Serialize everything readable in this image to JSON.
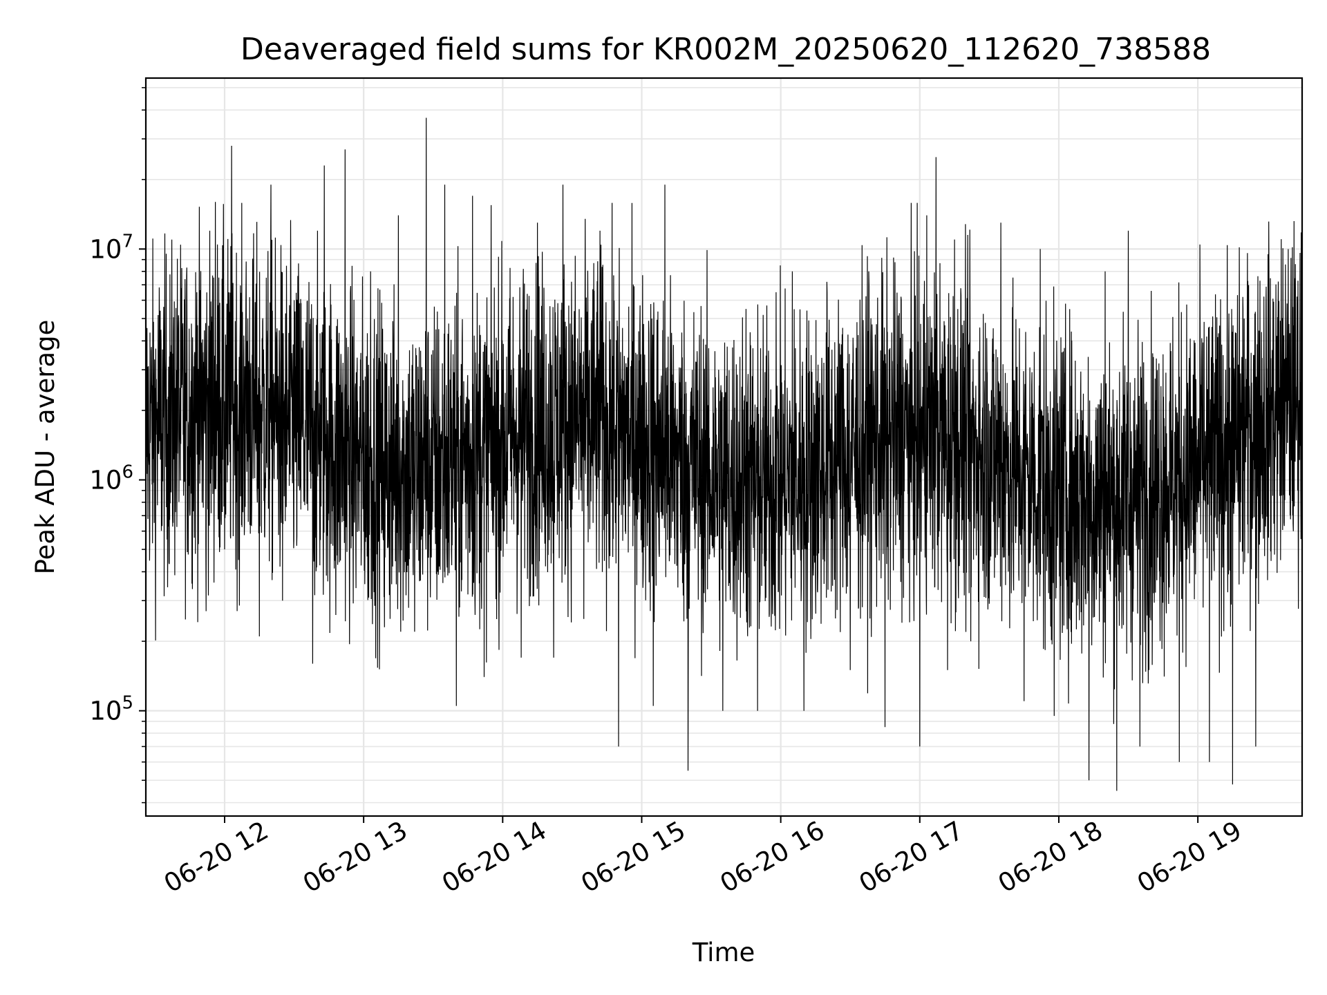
{
  "chart_data": {
    "type": "line",
    "title": "Deaveraged field sums for KR002M_20250620_112620_738588",
    "xlabel": "Time",
    "ylabel": "Peak ADU - average",
    "x_start": "2025-06-20 11:26",
    "x_end": "2025-06-20 19:45",
    "xlim": [
      "2025-06-20 11:26",
      "2025-06-20 19:45"
    ],
    "x_ticks": [
      "2025-06-20 12:00",
      "2025-06-20 13:00",
      "2025-06-20 14:00",
      "2025-06-20 15:00",
      "2025-06-20 16:00",
      "2025-06-20 17:00",
      "2025-06-20 18:00",
      "2025-06-20 19:00"
    ],
    "x_tick_labels": [
      "06-20 12",
      "06-20 13",
      "06-20 14",
      "06-20 15",
      "06-20 16",
      "06-20 17",
      "06-20 18",
      "06-20 19"
    ],
    "y_scale": "log",
    "ylim": [
      35000,
      55000000
    ],
    "y_ticks": [
      100000,
      1000000,
      10000000
    ],
    "y_tick_labels": [
      {
        "base": "10",
        "exp": "5"
      },
      {
        "base": "10",
        "exp": "6"
      },
      {
        "base": "10",
        "exp": "7"
      }
    ],
    "grid": true,
    "minor_grid": true,
    "line_color": "#000000",
    "grid_color": "#e6e6e6",
    "notable_points": [
      {
        "x": "2025-06-20 12:03",
        "y": 28000000
      },
      {
        "x": "2025-06-20 13:27",
        "y": 37000000
      },
      {
        "x": "2025-06-20 14:50",
        "y": 70000
      },
      {
        "x": "2025-06-20 15:20",
        "y": 55000
      },
      {
        "x": "2025-06-20 17:07",
        "y": 25000000
      },
      {
        "x": "2025-06-20 18:25",
        "y": 45000
      },
      {
        "x": "2025-06-20 19:15",
        "y": 48000
      }
    ],
    "series": [
      {
        "values": [
          [
            "2025-06-20 11:26",
            420000
          ],
          [
            "2025-06-20 11:30",
            2500000
          ],
          [
            "2025-06-20 11:35",
            900000
          ],
          [
            "2025-06-20 11:40",
            4500000
          ],
          [
            "2025-06-20 11:45",
            700000
          ],
          [
            "2025-06-20 11:48",
            6500000
          ],
          [
            "2025-06-20 11:52",
            270000
          ],
          [
            "2025-06-20 11:56",
            16000000
          ],
          [
            "2025-06-20 12:00",
            500000
          ],
          [
            "2025-06-20 12:03",
            28000000
          ],
          [
            "2025-06-20 12:06",
            450000
          ],
          [
            "2025-06-20 12:10",
            5000000
          ],
          [
            "2025-06-20 12:15",
            210000
          ],
          [
            "2025-06-20 12:20",
            19000000
          ],
          [
            "2025-06-20 12:25",
            300000
          ],
          [
            "2025-06-20 12:30",
            6000000
          ],
          [
            "2025-06-20 12:38",
            160000
          ],
          [
            "2025-06-20 12:43",
            23000000
          ],
          [
            "2025-06-20 12:48",
            260000
          ],
          [
            "2025-06-20 12:52",
            27000000
          ],
          [
            "2025-06-20 12:58",
            600000
          ],
          [
            "2025-06-20 13:03",
            8000000
          ],
          [
            "2025-06-20 13:09",
            230000
          ],
          [
            "2025-06-20 13:15",
            14000000
          ],
          [
            "2025-06-20 13:22",
            220000
          ],
          [
            "2025-06-20 13:27",
            37000000
          ],
          [
            "2025-06-20 13:32",
            400000
          ],
          [
            "2025-06-20 13:35",
            19000000
          ],
          [
            "2025-06-20 13:40",
            105000
          ],
          [
            "2025-06-20 13:47",
            17000000
          ],
          [
            "2025-06-20 13:52",
            140000
          ],
          [
            "2025-06-20 14:00",
            3000000
          ],
          [
            "2025-06-20 14:08",
            170000
          ],
          [
            "2025-06-20 14:15",
            13000000
          ],
          [
            "2025-06-20 14:22",
            170000
          ],
          [
            "2025-06-20 14:26",
            19000000
          ],
          [
            "2025-06-20 14:35",
            250000
          ],
          [
            "2025-06-20 14:42",
            12000000
          ],
          [
            "2025-06-20 14:50",
            70000
          ],
          [
            "2025-06-20 14:58",
            3500000
          ],
          [
            "2025-06-20 15:05",
            105000
          ],
          [
            "2025-06-20 15:10",
            19000000
          ],
          [
            "2025-06-20 15:20",
            55000
          ],
          [
            "2025-06-20 15:28",
            1500000
          ],
          [
            "2025-06-20 15:35",
            100000
          ],
          [
            "2025-06-20 15:45",
            5500000
          ],
          [
            "2025-06-20 15:50",
            100000
          ],
          [
            "2025-06-20 15:58",
            6500000
          ],
          [
            "2025-06-20 16:05",
            8000000
          ],
          [
            "2025-06-20 16:10",
            100000
          ],
          [
            "2025-06-20 16:20",
            6500000
          ],
          [
            "2025-06-20 16:30",
            150000
          ],
          [
            "2025-06-20 16:38",
            8000000
          ],
          [
            "2025-06-20 16:45",
            85000
          ],
          [
            "2025-06-20 16:52",
            6000000
          ],
          [
            "2025-06-20 17:00",
            70000
          ],
          [
            "2025-06-20 17:03",
            14000000
          ],
          [
            "2025-06-20 17:07",
            25000000
          ],
          [
            "2025-06-20 17:12",
            150000
          ],
          [
            "2025-06-20 17:15",
            11000000
          ],
          [
            "2025-06-20 17:22",
            200000
          ],
          [
            "2025-06-20 17:35",
            13000000
          ],
          [
            "2025-06-20 17:45",
            110000
          ],
          [
            "2025-06-20 17:52",
            10000000
          ],
          [
            "2025-06-20 17:58",
            95000
          ],
          [
            "2025-06-20 18:10",
            2000000
          ],
          [
            "2025-06-20 18:13",
            50000
          ],
          [
            "2025-06-20 18:20",
            8000000
          ],
          [
            "2025-06-20 18:25",
            45000
          ],
          [
            "2025-06-20 18:30",
            12000000
          ],
          [
            "2025-06-20 18:35",
            70000
          ],
          [
            "2025-06-20 18:45",
            3500000
          ],
          [
            "2025-06-20 18:52",
            60000
          ],
          [
            "2025-06-20 19:00",
            1500000
          ],
          [
            "2025-06-20 19:05",
            60000
          ],
          [
            "2025-06-20 19:12",
            3000000
          ],
          [
            "2025-06-20 19:15",
            48000
          ],
          [
            "2025-06-20 19:20",
            5000000
          ],
          [
            "2025-06-20 19:25",
            70000
          ],
          [
            "2025-06-20 19:33",
            1600000
          ],
          [
            "2025-06-20 19:38",
            2500000
          ],
          [
            "2025-06-20 19:42",
            1200000
          ],
          [
            "2025-06-20 19:45",
            400000
          ]
        ]
      }
    ]
  }
}
